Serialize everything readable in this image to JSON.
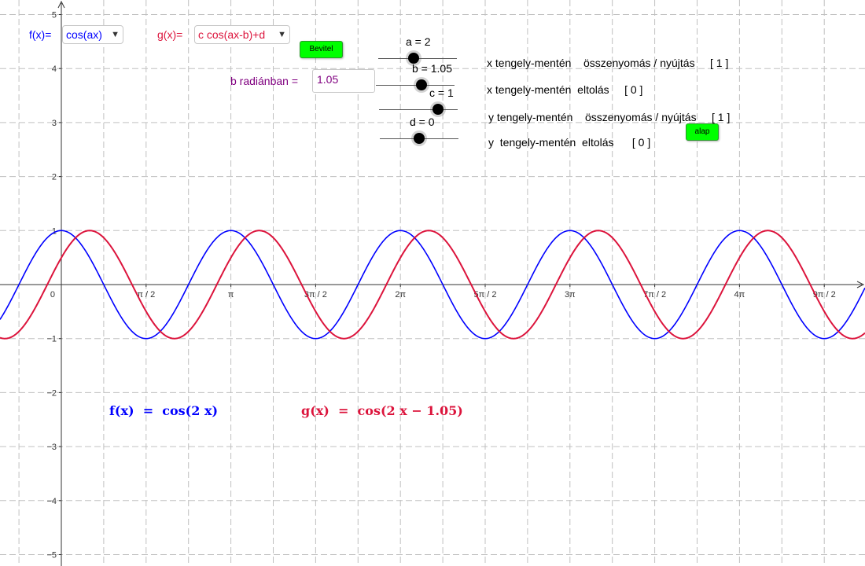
{
  "graph": {
    "y_ticks": [
      "5",
      "4",
      "3",
      "2",
      "1",
      "0",
      "−1",
      "−2",
      "−3",
      "−4",
      "−5"
    ],
    "x_ticks": [
      "π / 2",
      "π",
      "3π / 2",
      "2π",
      "5π / 2",
      "3π",
      "7π / 2",
      "4π",
      "9π / 2"
    ],
    "origin_label": "0",
    "f_color": "#0000ff",
    "g_color": "#dc143c",
    "a": 2,
    "b": 1.05,
    "c": 1,
    "d": 0
  },
  "f_selector": {
    "label": "f(x)=",
    "value": "cos(ax)"
  },
  "g_selector": {
    "label": "g(x)=",
    "value": "c cos(ax-b)+d"
  },
  "bevitel_button": "Bevitel",
  "alap_button": "alap",
  "b_input": {
    "label": "b  radiánban =",
    "value": "1.05"
  },
  "sliders": [
    {
      "label": "a = 2",
      "value": 2
    },
    {
      "label": "b = 1.05",
      "value": 1.05
    },
    {
      "label": "c = 1",
      "value": 1
    },
    {
      "label": "d = 0",
      "value": 0
    }
  ],
  "descriptions": [
    "x tengely-mentén    összenyomás / nyújtás     [ 1 ]",
    "x tengely-mentén  eltolás     [ 0 ]",
    "y tengely-mentén    összenyomás / nyújtás     [ 1 ]",
    "y  tengely-mentén  eltolás      [ 0 ]"
  ],
  "formulas": {
    "f": "f(x)  =  cos(2 x)",
    "g": "g(x)  =  cos(2 x − 1.05)"
  }
}
